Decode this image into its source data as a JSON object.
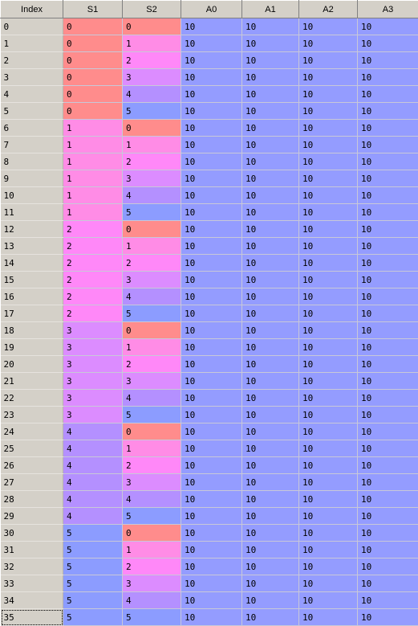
{
  "columns": [
    "Index",
    "S1",
    "S2",
    "A0",
    "A1",
    "A2",
    "A3"
  ],
  "level_colors": [
    "#ff8c8c",
    "#ff8ce6",
    "#ff8cf0",
    "#dc8cff",
    "#b48cff",
    "#8c9cff"
  ],
  "level_colors_note": "",
  "rows": [
    [
      "0",
      "0",
      "0",
      "10",
      "10",
      "10",
      "10"
    ],
    [
      "1",
      "0",
      "1",
      "10",
      "10",
      "10",
      "10"
    ],
    [
      "2",
      "0",
      "2",
      "10",
      "10",
      "10",
      "10"
    ],
    [
      "3",
      "0",
      "3",
      "10",
      "10",
      "10",
      "10"
    ],
    [
      "4",
      "0",
      "4",
      "10",
      "10",
      "10",
      "10"
    ],
    [
      "5",
      "0",
      "5",
      "10",
      "10",
      "10",
      "10"
    ],
    [
      "6",
      "1",
      "0",
      "10",
      "10",
      "10",
      "10"
    ],
    [
      "7",
      "1",
      "1",
      "10",
      "10",
      "10",
      "10"
    ],
    [
      "8",
      "1",
      "2",
      "10",
      "10",
      "10",
      "10"
    ],
    [
      "9",
      "1",
      "3",
      "10",
      "10",
      "10",
      "10"
    ],
    [
      "10",
      "1",
      "4",
      "10",
      "10",
      "10",
      "10"
    ],
    [
      "11",
      "1",
      "5",
      "10",
      "10",
      "10",
      "10"
    ],
    [
      "12",
      "2",
      "0",
      "10",
      "10",
      "10",
      "10"
    ],
    [
      "13",
      "2",
      "1",
      "10",
      "10",
      "10",
      "10"
    ],
    [
      "14",
      "2",
      "2",
      "10",
      "10",
      "10",
      "10"
    ],
    [
      "15",
      "2",
      "3",
      "10",
      "10",
      "10",
      "10"
    ],
    [
      "16",
      "2",
      "4",
      "10",
      "10",
      "10",
      "10"
    ],
    [
      "17",
      "2",
      "5",
      "10",
      "10",
      "10",
      "10"
    ],
    [
      "18",
      "3",
      "0",
      "10",
      "10",
      "10",
      "10"
    ],
    [
      "19",
      "3",
      "1",
      "10",
      "10",
      "10",
      "10"
    ],
    [
      "20",
      "3",
      "2",
      "10",
      "10",
      "10",
      "10"
    ],
    [
      "21",
      "3",
      "3",
      "10",
      "10",
      "10",
      "10"
    ],
    [
      "22",
      "3",
      "4",
      "10",
      "10",
      "10",
      "10"
    ],
    [
      "23",
      "3",
      "5",
      "10",
      "10",
      "10",
      "10"
    ],
    [
      "24",
      "4",
      "0",
      "10",
      "10",
      "10",
      "10"
    ],
    [
      "25",
      "4",
      "1",
      "10",
      "10",
      "10",
      "10"
    ],
    [
      "26",
      "4",
      "2",
      "10",
      "10",
      "10",
      "10"
    ],
    [
      "27",
      "4",
      "3",
      "10",
      "10",
      "10",
      "10"
    ],
    [
      "28",
      "4",
      "4",
      "10",
      "10",
      "10",
      "10"
    ],
    [
      "29",
      "4",
      "5",
      "10",
      "10",
      "10",
      "10"
    ],
    [
      "30",
      "5",
      "0",
      "10",
      "10",
      "10",
      "10"
    ],
    [
      "31",
      "5",
      "1",
      "10",
      "10",
      "10",
      "10"
    ],
    [
      "32",
      "5",
      "2",
      "10",
      "10",
      "10",
      "10"
    ],
    [
      "33",
      "5",
      "3",
      "10",
      "10",
      "10",
      "10"
    ],
    [
      "34",
      "5",
      "4",
      "10",
      "10",
      "10",
      "10"
    ],
    [
      "35",
      "5",
      "5",
      "10",
      "10",
      "10",
      "10"
    ]
  ],
  "colors": {
    "index_bg": "#d4d0c8",
    "header_bg": "#d4d0c8",
    "value_bg": "#949cff",
    "s_levels": [
      "#ff8c8c",
      "#ff8ce6",
      "#ff88f8",
      "#dc8cff",
      "#b490ff",
      "#8c9cff"
    ]
  },
  "focused_row": 35
}
